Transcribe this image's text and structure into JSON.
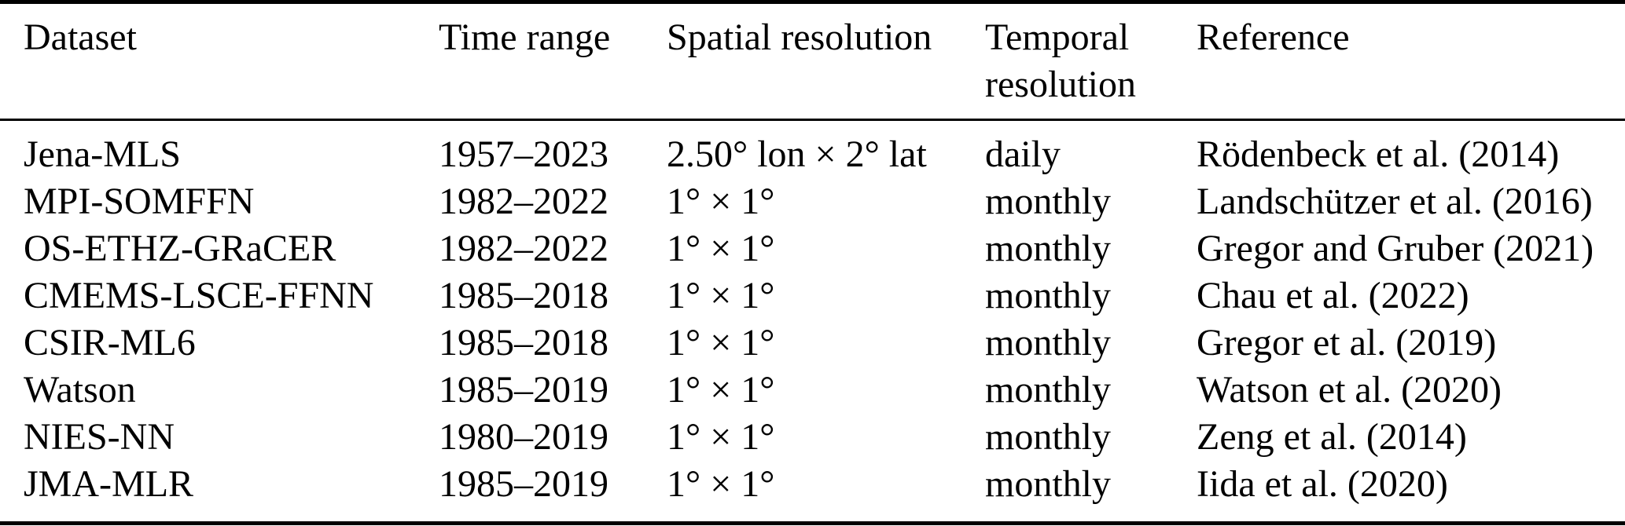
{
  "colors": {
    "background": "#ffffff",
    "text": "#000000",
    "rule": "#000000"
  },
  "table": {
    "columns": [
      {
        "label": "Dataset"
      },
      {
        "label": "Time range"
      },
      {
        "label": "Spatial resolution"
      },
      {
        "label": "Temporal resolution"
      },
      {
        "label": "Reference"
      }
    ],
    "rows": [
      {
        "dataset": "Jena-MLS",
        "time_range": "1957–2023",
        "spatial_resolution": "2.50° lon × 2° lat",
        "temporal_resolution": "daily",
        "reference": "Rödenbeck et al. (2014)"
      },
      {
        "dataset": "MPI-SOMFFN",
        "time_range": "1982–2022",
        "spatial_resolution": "1° × 1°",
        "temporal_resolution": "monthly",
        "reference": "Landschützer et al. (2016)"
      },
      {
        "dataset": "OS-ETHZ-GRaCER",
        "time_range": "1982–2022",
        "spatial_resolution": "1° × 1°",
        "temporal_resolution": "monthly",
        "reference": "Gregor and Gruber (2021)"
      },
      {
        "dataset": "CMEMS-LSCE-FFNN",
        "time_range": "1985–2018",
        "spatial_resolution": "1° × 1°",
        "temporal_resolution": "monthly",
        "reference": "Chau et al. (2022)"
      },
      {
        "dataset": "CSIR-ML6",
        "time_range": "1985–2018",
        "spatial_resolution": "1° × 1°",
        "temporal_resolution": "monthly",
        "reference": "Gregor et al. (2019)"
      },
      {
        "dataset": "Watson",
        "time_range": "1985–2019",
        "spatial_resolution": "1° × 1°",
        "temporal_resolution": "monthly",
        "reference": "Watson et al. (2020)"
      },
      {
        "dataset": "NIES-NN",
        "time_range": "1980–2019",
        "spatial_resolution": "1° × 1°",
        "temporal_resolution": "monthly",
        "reference": "Zeng et al. (2014)"
      },
      {
        "dataset": "JMA-MLR",
        "time_range": "1985–2019",
        "spatial_resolution": "1° × 1°",
        "temporal_resolution": "monthly",
        "reference": "Iida et al. (2020)"
      }
    ]
  }
}
